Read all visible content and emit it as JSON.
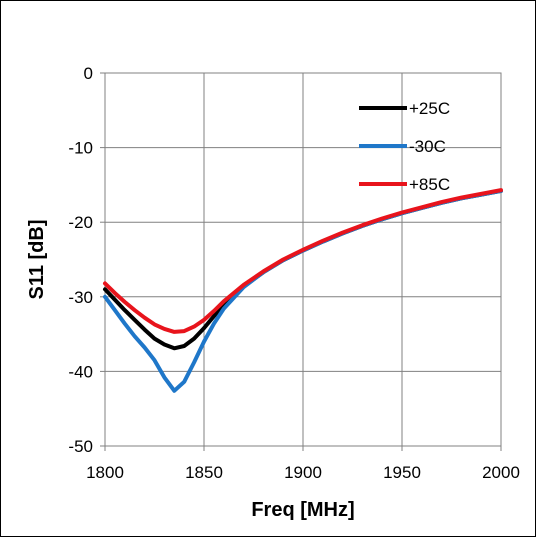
{
  "chart_data": {
    "type": "line",
    "title": "",
    "xlabel": "Freq [MHz]",
    "ylabel": "S11 [dB]",
    "xlim": [
      1800,
      2000
    ],
    "ylim": [
      -50,
      0
    ],
    "xticks": [
      1800,
      1850,
      1900,
      1950,
      2000
    ],
    "yticks": [
      0,
      -10,
      -20,
      -30,
      -40,
      -50
    ],
    "grid": true,
    "legend_position": "top-right",
    "series": [
      {
        "name": "+25C",
        "color": "#000000",
        "x": [
          1800,
          1805,
          1810,
          1815,
          1820,
          1825,
          1830,
          1835,
          1840,
          1845,
          1850,
          1855,
          1860,
          1870,
          1880,
          1890,
          1900,
          1910,
          1920,
          1930,
          1940,
          1950,
          1960,
          1970,
          1980,
          1990,
          2000
        ],
        "y": [
          -29.0,
          -30.4,
          -31.8,
          -33.1,
          -34.4,
          -35.6,
          -36.4,
          -36.9,
          -36.6,
          -35.6,
          -34.2,
          -32.6,
          -31.0,
          -28.6,
          -26.7,
          -25.1,
          -23.8,
          -22.6,
          -21.5,
          -20.5,
          -19.6,
          -18.8,
          -18.1,
          -17.4,
          -16.8,
          -16.3,
          -15.8
        ]
      },
      {
        "name": "-30C",
        "color": "#1f77c9",
        "x": [
          1800,
          1805,
          1810,
          1815,
          1820,
          1825,
          1830,
          1835,
          1840,
          1845,
          1850,
          1855,
          1860,
          1870,
          1880,
          1890,
          1900,
          1910,
          1920,
          1930,
          1940,
          1950,
          1960,
          1970,
          1980,
          1990,
          2000
        ],
        "y": [
          -30.0,
          -31.8,
          -33.6,
          -35.3,
          -36.8,
          -38.5,
          -40.8,
          -42.6,
          -41.4,
          -38.8,
          -36.0,
          -33.6,
          -31.6,
          -28.7,
          -26.7,
          -25.1,
          -23.8,
          -22.6,
          -21.5,
          -20.5,
          -19.6,
          -18.8,
          -18.1,
          -17.4,
          -16.8,
          -16.3,
          -15.8
        ]
      },
      {
        "name": "+85C",
        "color": "#e8141c",
        "x": [
          1800,
          1805,
          1810,
          1815,
          1820,
          1825,
          1830,
          1835,
          1840,
          1845,
          1850,
          1855,
          1860,
          1870,
          1880,
          1890,
          1900,
          1910,
          1920,
          1930,
          1940,
          1950,
          1960,
          1970,
          1980,
          1990,
          2000
        ],
        "y": [
          -28.2,
          -29.5,
          -30.7,
          -31.8,
          -32.8,
          -33.7,
          -34.3,
          -34.7,
          -34.6,
          -34.0,
          -33.1,
          -31.9,
          -30.6,
          -28.4,
          -26.6,
          -25.0,
          -23.7,
          -22.5,
          -21.4,
          -20.4,
          -19.5,
          -18.7,
          -18.0,
          -17.3,
          -16.7,
          -16.2,
          -15.7
        ]
      }
    ]
  }
}
